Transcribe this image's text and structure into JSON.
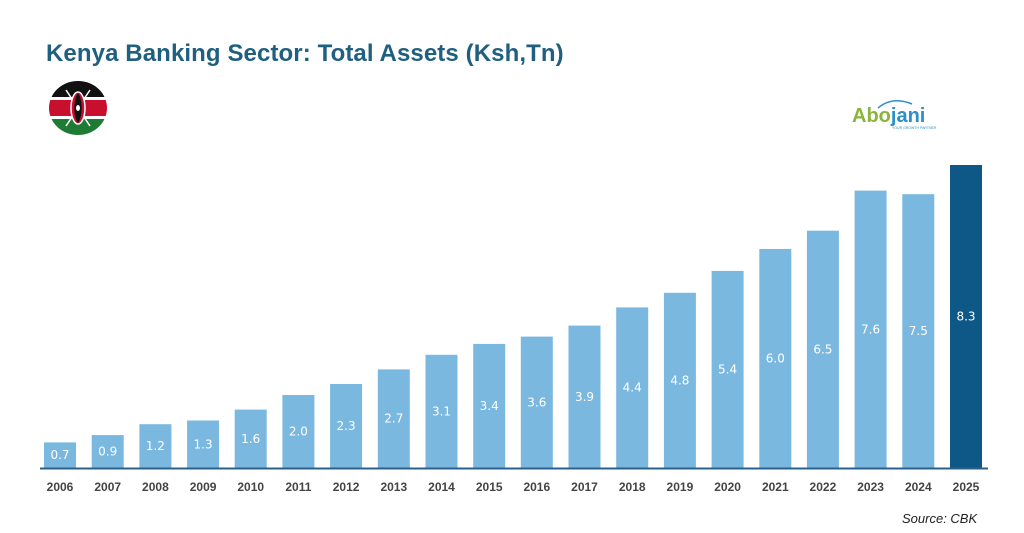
{
  "header": {
    "title": "Kenya Banking Sector: Total Assets (Ksh,Tn)"
  },
  "logo": {
    "part1": "Abo",
    "part2": "jani",
    "tagline": "YOUR GROWTH PARTNER"
  },
  "footer": {
    "source": "Source: CBK"
  },
  "colors": {
    "bar": "#7ab8e0",
    "highlight_bar": "#0d5887",
    "baseline": "#2c5f8a",
    "title": "#1f5f7f"
  },
  "chart_data": {
    "type": "bar",
    "title": "Kenya Banking Sector: Total Assets (Ksh,Tn)",
    "xlabel": "",
    "ylabel": "",
    "categories": [
      "2006",
      "2007",
      "2008",
      "2009",
      "2010",
      "2011",
      "2012",
      "2013",
      "2014",
      "2015",
      "2016",
      "2017",
      "2018",
      "2019",
      "2020",
      "2021",
      "2022",
      "2023",
      "2024",
      "2025"
    ],
    "values": [
      0.7,
      0.9,
      1.2,
      1.3,
      1.6,
      2.0,
      2.3,
      2.7,
      3.1,
      3.4,
      3.6,
      3.9,
      4.4,
      4.8,
      5.4,
      6.0,
      6.5,
      7.6,
      7.5,
      8.3
    ],
    "labels": [
      "0.7",
      "0.9",
      "1.2",
      "1.3",
      "1.6",
      "2.0",
      "2.3",
      "2.7",
      "3.1",
      "3.4",
      "3.6",
      "3.9",
      "4.4",
      "4.8",
      "5.4",
      "6.0",
      "6.5",
      "7.6",
      "7.5",
      "8.3"
    ],
    "highlight": "2025",
    "ylim": [
      0,
      8.3
    ],
    "grid": false,
    "legend": "none"
  }
}
